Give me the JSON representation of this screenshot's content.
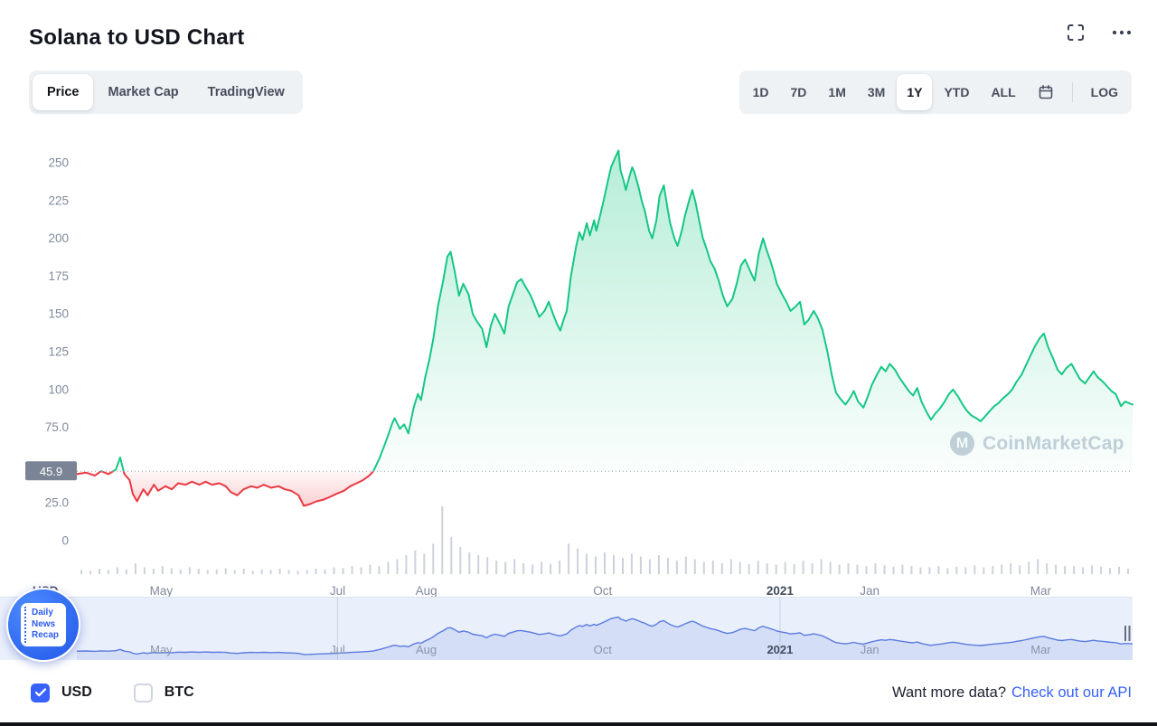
{
  "header": {
    "title": "Solana to USD Chart"
  },
  "icons": {
    "fullscreen": "fullscreen-icon",
    "more_options": "ellipsis-icon",
    "calendar": "calendar-icon",
    "check": "check-icon",
    "logo": "coinmarketcap-m-icon"
  },
  "toolbar": {
    "chart_tabs": [
      {
        "label": "Price",
        "active": true
      },
      {
        "label": "Market Cap",
        "active": false
      },
      {
        "label": "TradingView",
        "active": false
      }
    ],
    "ranges": [
      {
        "label": "1D",
        "active": false
      },
      {
        "label": "7D",
        "active": false
      },
      {
        "label": "1M",
        "active": false
      },
      {
        "label": "3M",
        "active": false
      },
      {
        "label": "1Y",
        "active": true
      },
      {
        "label": "YTD",
        "active": false
      },
      {
        "label": "ALL",
        "active": false
      }
    ],
    "log_label": "LOG"
  },
  "watermark": {
    "text": "CoinMarketCap",
    "logo_letter": "M"
  },
  "news_badge": {
    "lines": [
      "Daily",
      "News",
      "Recap"
    ]
  },
  "footer": {
    "currencies": [
      {
        "label": "USD",
        "checked": true
      },
      {
        "label": "BTC",
        "checked": false
      }
    ],
    "promo": {
      "text": "Want more data?",
      "link": "Check out our API"
    }
  },
  "chart_data": {
    "type": "area",
    "title": "Solana to USD Chart",
    "axis_unit": "USD",
    "baseline_value": 45.9,
    "baseline_label": "45.9",
    "ylim": [
      0,
      268
    ],
    "grid": "off",
    "legend": "none",
    "yticks": [
      {
        "value": 250,
        "label": "250"
      },
      {
        "value": 225,
        "label": "225"
      },
      {
        "value": 200,
        "label": "200"
      },
      {
        "value": 175,
        "label": "175"
      },
      {
        "value": 150,
        "label": "150"
      },
      {
        "value": 125,
        "label": "125"
      },
      {
        "value": 100,
        "label": "100"
      },
      {
        "value": 75,
        "label": "75.0"
      },
      {
        "value": 25,
        "label": "25.0"
      },
      {
        "value": 0,
        "label": "0"
      }
    ],
    "xticks": [
      {
        "label": "May",
        "pos": 0.08,
        "bold": false
      },
      {
        "label": "Jul",
        "pos": 0.247,
        "bold": false
      },
      {
        "label": "Aug",
        "pos": 0.331,
        "bold": false
      },
      {
        "label": "Oct",
        "pos": 0.498,
        "bold": false
      },
      {
        "label": "2021",
        "pos": 0.666,
        "bold": true
      },
      {
        "label": "Jan",
        "pos": 0.751,
        "bold": false
      },
      {
        "label": "Mar",
        "pos": 0.913,
        "bold": false
      }
    ],
    "colors": {
      "up": "#16c784",
      "down": "#ea3943",
      "baseline_badge_bg": "#7b8495",
      "volume": "#ccd2dc",
      "navigator_line": "#5b7be0",
      "navigator_fill": "rgba(76,110,225,0.13)",
      "navigator_bg": "#e9effb",
      "accent_blue": "#3861fb"
    },
    "points": [
      [
        0.0,
        44
      ],
      [
        0.009,
        45
      ],
      [
        0.017,
        43
      ],
      [
        0.023,
        46
      ],
      [
        0.03,
        44
      ],
      [
        0.037,
        47
      ],
      [
        0.041,
        55
      ],
      [
        0.045,
        44
      ],
      [
        0.05,
        40
      ],
      [
        0.053,
        31
      ],
      [
        0.057,
        26
      ],
      [
        0.063,
        34
      ],
      [
        0.067,
        30
      ],
      [
        0.073,
        37
      ],
      [
        0.077,
        33
      ],
      [
        0.084,
        36
      ],
      [
        0.09,
        34
      ],
      [
        0.096,
        38
      ],
      [
        0.103,
        37
      ],
      [
        0.109,
        39
      ],
      [
        0.116,
        37
      ],
      [
        0.122,
        39
      ],
      [
        0.128,
        37
      ],
      [
        0.135,
        38
      ],
      [
        0.141,
        36
      ],
      [
        0.146,
        32
      ],
      [
        0.152,
        30
      ],
      [
        0.158,
        34
      ],
      [
        0.165,
        36
      ],
      [
        0.171,
        35
      ],
      [
        0.177,
        37
      ],
      [
        0.184,
        35
      ],
      [
        0.191,
        36
      ],
      [
        0.197,
        34
      ],
      [
        0.203,
        33
      ],
      [
        0.21,
        30
      ],
      [
        0.215,
        23
      ],
      [
        0.22,
        24
      ],
      [
        0.227,
        26
      ],
      [
        0.233,
        27
      ],
      [
        0.24,
        29
      ],
      [
        0.246,
        31
      ],
      [
        0.253,
        33
      ],
      [
        0.259,
        36
      ],
      [
        0.265,
        38
      ],
      [
        0.271,
        40
      ],
      [
        0.277,
        43
      ],
      [
        0.281,
        46
      ],
      [
        0.287,
        55
      ],
      [
        0.294,
        68
      ],
      [
        0.299,
        78
      ],
      [
        0.301,
        81
      ],
      [
        0.306,
        74
      ],
      [
        0.31,
        77
      ],
      [
        0.314,
        71
      ],
      [
        0.319,
        88
      ],
      [
        0.323,
        97
      ],
      [
        0.326,
        93
      ],
      [
        0.33,
        108
      ],
      [
        0.334,
        120
      ],
      [
        0.338,
        135
      ],
      [
        0.342,
        155
      ],
      [
        0.347,
        172
      ],
      [
        0.351,
        188
      ],
      [
        0.354,
        191
      ],
      [
        0.358,
        178
      ],
      [
        0.362,
        162
      ],
      [
        0.366,
        170
      ],
      [
        0.371,
        163
      ],
      [
        0.375,
        150
      ],
      [
        0.379,
        145
      ],
      [
        0.384,
        140
      ],
      [
        0.388,
        128
      ],
      [
        0.392,
        142
      ],
      [
        0.396,
        150
      ],
      [
        0.401,
        143
      ],
      [
        0.405,
        137
      ],
      [
        0.409,
        155
      ],
      [
        0.413,
        163
      ],
      [
        0.417,
        171
      ],
      [
        0.421,
        173
      ],
      [
        0.425,
        168
      ],
      [
        0.43,
        162
      ],
      [
        0.434,
        155
      ],
      [
        0.438,
        148
      ],
      [
        0.443,
        152
      ],
      [
        0.447,
        158
      ],
      [
        0.451,
        150
      ],
      [
        0.455,
        143
      ],
      [
        0.458,
        139
      ],
      [
        0.461,
        146
      ],
      [
        0.464,
        152
      ],
      [
        0.468,
        175
      ],
      [
        0.473,
        195
      ],
      [
        0.476,
        204
      ],
      [
        0.479,
        199
      ],
      [
        0.483,
        210
      ],
      [
        0.486,
        202
      ],
      [
        0.49,
        212
      ],
      [
        0.492,
        205
      ],
      [
        0.496,
        216
      ],
      [
        0.499,
        225
      ],
      [
        0.503,
        238
      ],
      [
        0.506,
        247
      ],
      [
        0.509,
        252
      ],
      [
        0.513,
        258
      ],
      [
        0.515,
        245
      ],
      [
        0.518,
        238
      ],
      [
        0.52,
        232
      ],
      [
        0.523,
        240
      ],
      [
        0.526,
        247
      ],
      [
        0.528,
        244
      ],
      [
        0.532,
        234
      ],
      [
        0.535,
        225
      ],
      [
        0.538,
        218
      ],
      [
        0.542,
        205
      ],
      [
        0.545,
        200
      ],
      [
        0.549,
        212
      ],
      [
        0.552,
        228
      ],
      [
        0.556,
        235
      ],
      [
        0.559,
        222
      ],
      [
        0.562,
        210
      ],
      [
        0.566,
        200
      ],
      [
        0.569,
        195
      ],
      [
        0.573,
        205
      ],
      [
        0.576,
        215
      ],
      [
        0.58,
        225
      ],
      [
        0.583,
        232
      ],
      [
        0.586,
        224
      ],
      [
        0.59,
        210
      ],
      [
        0.593,
        200
      ],
      [
        0.597,
        192
      ],
      [
        0.6,
        185
      ],
      [
        0.604,
        180
      ],
      [
        0.608,
        172
      ],
      [
        0.612,
        162
      ],
      [
        0.616,
        155
      ],
      [
        0.621,
        160
      ],
      [
        0.625,
        170
      ],
      [
        0.629,
        182
      ],
      [
        0.633,
        186
      ],
      [
        0.638,
        178
      ],
      [
        0.642,
        172
      ],
      [
        0.646,
        190
      ],
      [
        0.65,
        200
      ],
      [
        0.653,
        193
      ],
      [
        0.657,
        185
      ],
      [
        0.66,
        178
      ],
      [
        0.663,
        170
      ],
      [
        0.668,
        163
      ],
      [
        0.672,
        158
      ],
      [
        0.676,
        152
      ],
      [
        0.681,
        155
      ],
      [
        0.685,
        158
      ],
      [
        0.689,
        143
      ],
      [
        0.693,
        146
      ],
      [
        0.698,
        152
      ],
      [
        0.702,
        147
      ],
      [
        0.706,
        140
      ],
      [
        0.711,
        125
      ],
      [
        0.715,
        110
      ],
      [
        0.719,
        98
      ],
      [
        0.723,
        94
      ],
      [
        0.728,
        90
      ],
      [
        0.732,
        94
      ],
      [
        0.736,
        99
      ],
      [
        0.74,
        92
      ],
      [
        0.745,
        88
      ],
      [
        0.749,
        95
      ],
      [
        0.753,
        103
      ],
      [
        0.758,
        110
      ],
      [
        0.762,
        115
      ],
      [
        0.766,
        112
      ],
      [
        0.77,
        117
      ],
      [
        0.775,
        113
      ],
      [
        0.779,
        108
      ],
      [
        0.783,
        104
      ],
      [
        0.788,
        99
      ],
      [
        0.792,
        96
      ],
      [
        0.796,
        101
      ],
      [
        0.8,
        92
      ],
      [
        0.805,
        85
      ],
      [
        0.809,
        80
      ],
      [
        0.813,
        84
      ],
      [
        0.817,
        87
      ],
      [
        0.822,
        92
      ],
      [
        0.826,
        97
      ],
      [
        0.83,
        100
      ],
      [
        0.835,
        95
      ],
      [
        0.839,
        90
      ],
      [
        0.843,
        86
      ],
      [
        0.847,
        83
      ],
      [
        0.852,
        81
      ],
      [
        0.856,
        79
      ],
      [
        0.86,
        82
      ],
      [
        0.865,
        86
      ],
      [
        0.869,
        89
      ],
      [
        0.873,
        91
      ],
      [
        0.877,
        94
      ],
      [
        0.882,
        97
      ],
      [
        0.886,
        100
      ],
      [
        0.89,
        105
      ],
      [
        0.895,
        110
      ],
      [
        0.899,
        116
      ],
      [
        0.903,
        122
      ],
      [
        0.907,
        128
      ],
      [
        0.912,
        134
      ],
      [
        0.916,
        137
      ],
      [
        0.92,
        128
      ],
      [
        0.925,
        120
      ],
      [
        0.929,
        113
      ],
      [
        0.933,
        110
      ],
      [
        0.937,
        114
      ],
      [
        0.942,
        117
      ],
      [
        0.946,
        112
      ],
      [
        0.95,
        107
      ],
      [
        0.955,
        104
      ],
      [
        0.959,
        108
      ],
      [
        0.963,
        112
      ],
      [
        0.967,
        108
      ],
      [
        0.972,
        105
      ],
      [
        0.976,
        102
      ],
      [
        0.98,
        99
      ],
      [
        0.984,
        97
      ],
      [
        0.989,
        89
      ],
      [
        0.993,
        92
      ],
      [
        1.0,
        90
      ]
    ],
    "volume": [
      0.06,
      0.05,
      0.08,
      0.06,
      0.1,
      0.07,
      0.16,
      0.1,
      0.08,
      0.12,
      0.09,
      0.07,
      0.1,
      0.08,
      0.06,
      0.07,
      0.09,
      0.06,
      0.08,
      0.05,
      0.07,
      0.06,
      0.08,
      0.06,
      0.05,
      0.06,
      0.08,
      0.07,
      0.1,
      0.09,
      0.12,
      0.1,
      0.14,
      0.12,
      0.18,
      0.22,
      0.28,
      0.35,
      0.3,
      0.45,
      1.0,
      0.55,
      0.4,
      0.32,
      0.28,
      0.25,
      0.2,
      0.18,
      0.22,
      0.16,
      0.14,
      0.18,
      0.15,
      0.2,
      0.45,
      0.38,
      0.3,
      0.26,
      0.32,
      0.28,
      0.24,
      0.3,
      0.26,
      0.22,
      0.28,
      0.24,
      0.2,
      0.26,
      0.22,
      0.18,
      0.2,
      0.16,
      0.22,
      0.18,
      0.15,
      0.2,
      0.16,
      0.14,
      0.18,
      0.15,
      0.2,
      0.16,
      0.22,
      0.18,
      0.14,
      0.16,
      0.14,
      0.12,
      0.16,
      0.13,
      0.11,
      0.14,
      0.12,
      0.1,
      0.1,
      0.12,
      0.09,
      0.11,
      0.1,
      0.13,
      0.1,
      0.12,
      0.14,
      0.16,
      0.13,
      0.18,
      0.22,
      0.16,
      0.14,
      0.12,
      0.12,
      0.1,
      0.13,
      0.11,
      0.09,
      0.11,
      0.08
    ]
  }
}
